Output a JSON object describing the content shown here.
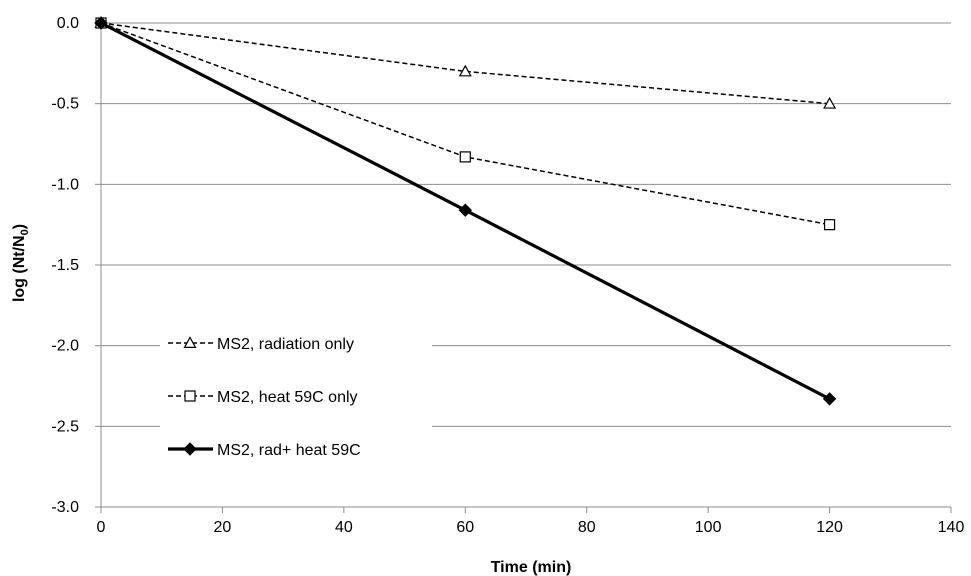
{
  "chart_data": {
    "type": "line",
    "title": "",
    "xlabel": "Time (min)",
    "ylabel_main": "log (Nt/N",
    "ylabel_sub": "0",
    "ylabel_close": ")",
    "xlim": [
      0,
      140
    ],
    "ylim": [
      -3.0,
      0.0
    ],
    "x_ticks": [
      0,
      20,
      40,
      60,
      80,
      100,
      120,
      140
    ],
    "y_ticks": [
      0.0,
      -0.5,
      -1.0,
      -1.5,
      -2.0,
      -2.5,
      -3.0
    ],
    "y_tick_labels": [
      "0.0",
      "-0.5",
      "-1.0",
      "-1.5",
      "-2.0",
      "-2.5",
      "-3.0"
    ],
    "grid": "horizontal",
    "legend_position": "bottom-left",
    "series": [
      {
        "name": "MS2, radiation only",
        "x": [
          0,
          60,
          120
        ],
        "y": [
          0.0,
          -0.3,
          -0.5
        ],
        "line": "dashed",
        "marker": "triangle-open"
      },
      {
        "name": "MS2, heat 59C only",
        "x": [
          0,
          60,
          120
        ],
        "y": [
          0.0,
          -0.83,
          -1.25
        ],
        "line": "dashed",
        "marker": "square-open"
      },
      {
        "name": "MS2, rad+ heat 59C",
        "x": [
          0,
          60,
          120
        ],
        "y": [
          0.0,
          -1.16,
          -2.33
        ],
        "line": "solid-bold",
        "marker": "diamond-filled"
      }
    ]
  }
}
